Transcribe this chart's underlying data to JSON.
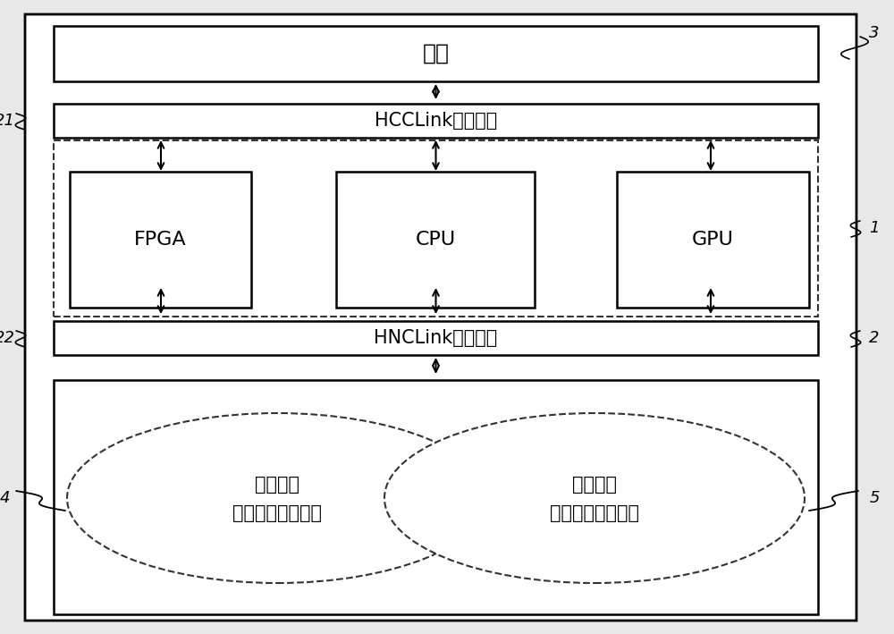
{
  "bg_color": "#e8e8e8",
  "outer_bg": "#ffffff",
  "box_color": "#ffffff",
  "components": {
    "memory_label": "内存",
    "hcclink_label": "HCCLink总线模块",
    "hnclink_label": "HNCLink总线模块",
    "fpga_label": "FPGA",
    "cpu_label": "CPU",
    "gpu_label": "GPU",
    "input_line1": "基因解读",
    "input_line2": "数据指令输入单元",
    "output_line1": "基因解读",
    "output_line2": "数据指令输出单元"
  },
  "labels": {
    "label_1": "1",
    "label_2": "2",
    "label_3": "3",
    "label_4": "4",
    "label_5": "5",
    "label_21": "21",
    "label_22": "22"
  },
  "font_size_main": 15,
  "font_size_label": 13,
  "font_size_small": 11,
  "line_color": "#000000",
  "dashed_color": "#333333"
}
